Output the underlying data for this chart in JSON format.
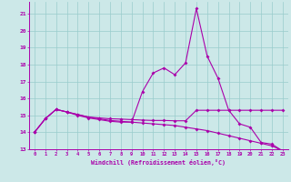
{
  "xlabel": "Windchill (Refroidissement éolien,°C)",
  "x_values": [
    0,
    1,
    2,
    3,
    4,
    5,
    6,
    7,
    8,
    9,
    10,
    11,
    12,
    13,
    14,
    15,
    16,
    17,
    18,
    19,
    20,
    21,
    22,
    23
  ],
  "line1_y": [
    14.0,
    14.8,
    15.35,
    15.2,
    15.0,
    14.85,
    14.75,
    14.65,
    14.6,
    14.6,
    16.4,
    17.5,
    17.8,
    17.4,
    18.1,
    21.3,
    18.5,
    17.2,
    15.3,
    14.5,
    14.3,
    13.4,
    13.3,
    12.9
  ],
  "line2_y": [
    14.0,
    14.8,
    15.35,
    15.2,
    15.05,
    14.9,
    14.8,
    14.7,
    14.65,
    14.6,
    14.55,
    14.5,
    14.45,
    14.4,
    14.3,
    14.2,
    14.1,
    13.95,
    13.8,
    13.65,
    13.5,
    13.35,
    13.2,
    12.9
  ],
  "line3_y": [
    14.0,
    14.8,
    15.35,
    15.2,
    15.05,
    14.9,
    14.85,
    14.8,
    14.78,
    14.75,
    14.72,
    14.7,
    14.7,
    14.68,
    14.68,
    15.3,
    15.3,
    15.3,
    15.3,
    15.3,
    15.3,
    15.3,
    15.3,
    15.3
  ],
  "line_color": "#aa00aa",
  "bg_color": "#cce8e8",
  "grid_color": "#99cccc",
  "ylim_min": 13.0,
  "ylim_max": 21.7,
  "yticks": [
    13,
    14,
    15,
    16,
    17,
    18,
    19,
    20,
    21
  ],
  "xlim_min": -0.5,
  "xlim_max": 23.5,
  "xticks": [
    0,
    1,
    2,
    3,
    4,
    5,
    6,
    7,
    8,
    9,
    10,
    11,
    12,
    13,
    14,
    15,
    16,
    17,
    18,
    19,
    20,
    21,
    22,
    23
  ]
}
